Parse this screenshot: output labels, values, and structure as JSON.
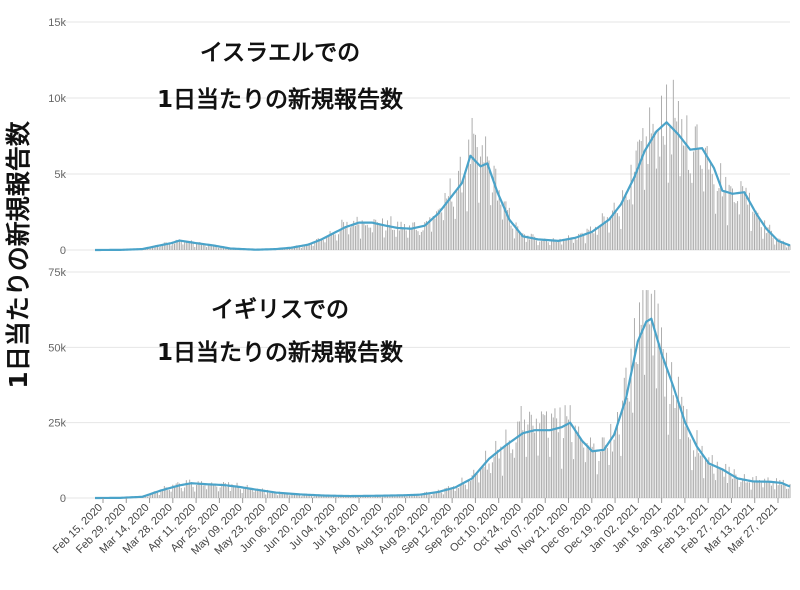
{
  "y_axis_title": "1日当たりの新規報告数",
  "x_dates": [
    "Feb 15, 2020",
    "Feb 29, 2020",
    "Mar 14, 2020",
    "Mar 28, 2020",
    "Apr 11, 2020",
    "Apr 25, 2020",
    "May 09, 2020",
    "May 23, 2020",
    "Jun 06, 2020",
    "Jun 20, 2020",
    "Jul 04, 2020",
    "Jul 18, 2020",
    "Aug 01, 2020",
    "Aug 15, 2020",
    "Aug 29, 2020",
    "Sep 12, 2020",
    "Sep 26, 2020",
    "Oct 10, 2020",
    "Oct 24, 2020",
    "Nov 07, 2020",
    "Nov 21, 2020",
    "Dec 05, 2020",
    "Dec 19, 2020",
    "Jan 02, 2021",
    "Jan 16, 2021",
    "Jan 30, 2021",
    "Feb 13, 2021",
    "Feb 27, 2021",
    "Mar 13, 2021",
    "Mar 27, 2021"
  ],
  "colors": {
    "bars": "#a8a8a8",
    "line": "#4aa3c9",
    "grid": "#e6e6e6"
  },
  "chart_data": [
    {
      "type": "bar",
      "title_lines": [
        "イスラエルでの",
        "1日当たりの新規報告数"
      ],
      "series": [
        {
          "kind": "bar",
          "note": "daily"
        },
        {
          "kind": "line",
          "note": "7-day average"
        }
      ],
      "yticks": [
        0,
        5000,
        10000,
        15000
      ],
      "ytick_labels": [
        "0",
        "5k",
        "10k",
        "15k"
      ],
      "ylim": [
        0,
        15000
      ],
      "xlim": [
        "2020-02-15",
        "2021-04-01"
      ],
      "avg_points": [
        [
          "2020-02-15",
          0
        ],
        [
          "2020-03-01",
          10
        ],
        [
          "2020-03-14",
          60
        ],
        [
          "2020-03-22",
          250
        ],
        [
          "2020-03-31",
          450
        ],
        [
          "2020-04-05",
          620
        ],
        [
          "2020-04-15",
          450
        ],
        [
          "2020-04-25",
          300
        ],
        [
          "2020-05-05",
          100
        ],
        [
          "2020-05-20",
          20
        ],
        [
          "2020-06-01",
          60
        ],
        [
          "2020-06-10",
          150
        ],
        [
          "2020-06-20",
          350
        ],
        [
          "2020-06-28",
          700
        ],
        [
          "2020-07-05",
          1100
        ],
        [
          "2020-07-12",
          1500
        ],
        [
          "2020-07-20",
          1800
        ],
        [
          "2020-07-28",
          1800
        ],
        [
          "2020-08-05",
          1600
        ],
        [
          "2020-08-12",
          1450
        ],
        [
          "2020-08-20",
          1400
        ],
        [
          "2020-08-28",
          1600
        ],
        [
          "2020-09-05",
          2400
        ],
        [
          "2020-09-12",
          3400
        ],
        [
          "2020-09-19",
          4400
        ],
        [
          "2020-09-24",
          6200
        ],
        [
          "2020-09-30",
          5500
        ],
        [
          "2020-10-04",
          5700
        ],
        [
          "2020-10-10",
          3800
        ],
        [
          "2020-10-17",
          2000
        ],
        [
          "2020-10-25",
          900
        ],
        [
          "2020-11-03",
          700
        ],
        [
          "2020-11-15",
          600
        ],
        [
          "2020-11-25",
          800
        ],
        [
          "2020-12-05",
          1200
        ],
        [
          "2020-12-15",
          2000
        ],
        [
          "2020-12-22",
          3000
        ],
        [
          "2020-12-30",
          4800
        ],
        [
          "2021-01-05",
          6500
        ],
        [
          "2021-01-12",
          7800
        ],
        [
          "2021-01-18",
          8400
        ],
        [
          "2021-01-25",
          7600
        ],
        [
          "2021-02-01",
          6600
        ],
        [
          "2021-02-08",
          6700
        ],
        [
          "2021-02-15",
          5400
        ],
        [
          "2021-02-20",
          3900
        ],
        [
          "2021-02-26",
          3700
        ],
        [
          "2021-03-05",
          3800
        ],
        [
          "2021-03-12",
          2400
        ],
        [
          "2021-03-18",
          1400
        ],
        [
          "2021-03-25",
          600
        ],
        [
          "2021-04-01",
          300
        ]
      ]
    },
    {
      "type": "bar",
      "title_lines": [
        "イギリスでの",
        "1日当たりの新規報告数"
      ],
      "series": [
        {
          "kind": "bar",
          "note": "daily"
        },
        {
          "kind": "line",
          "note": "7-day average"
        }
      ],
      "yticks": [
        0,
        25000,
        50000,
        75000
      ],
      "ytick_labels": [
        "0",
        "25k",
        "50k",
        "75k"
      ],
      "ylim": [
        0,
        75000
      ],
      "xlim": [
        "2020-02-15",
        "2021-04-01"
      ],
      "avg_points": [
        [
          "2020-02-15",
          0
        ],
        [
          "2020-03-01",
          50
        ],
        [
          "2020-03-14",
          400
        ],
        [
          "2020-03-25",
          2500
        ],
        [
          "2020-04-05",
          4200
        ],
        [
          "2020-04-12",
          4900
        ],
        [
          "2020-04-20",
          4600
        ],
        [
          "2020-05-01",
          4300
        ],
        [
          "2020-05-10",
          3700
        ],
        [
          "2020-05-20",
          2800
        ],
        [
          "2020-06-01",
          1800
        ],
        [
          "2020-06-15",
          1200
        ],
        [
          "2020-06-30",
          800
        ],
        [
          "2020-07-15",
          650
        ],
        [
          "2020-08-01",
          750
        ],
        [
          "2020-08-15",
          900
        ],
        [
          "2020-08-25",
          1100
        ],
        [
          "2020-09-05",
          2000
        ],
        [
          "2020-09-15",
          3500
        ],
        [
          "2020-09-25",
          6500
        ],
        [
          "2020-10-05",
          13000
        ],
        [
          "2020-10-15",
          17500
        ],
        [
          "2020-10-25",
          21500
        ],
        [
          "2020-11-01",
          22500
        ],
        [
          "2020-11-10",
          22500
        ],
        [
          "2020-11-17",
          23500
        ],
        [
          "2020-11-22",
          25000
        ],
        [
          "2020-11-29",
          19000
        ],
        [
          "2020-12-05",
          15500
        ],
        [
          "2020-12-12",
          16000
        ],
        [
          "2020-12-18",
          21000
        ],
        [
          "2020-12-25",
          33000
        ],
        [
          "2021-01-01",
          52000
        ],
        [
          "2021-01-06",
          58500
        ],
        [
          "2021-01-09",
          59500
        ],
        [
          "2021-01-15",
          48000
        ],
        [
          "2021-01-22",
          37000
        ],
        [
          "2021-01-29",
          25000
        ],
        [
          "2021-02-05",
          17000
        ],
        [
          "2021-02-12",
          11500
        ],
        [
          "2021-02-20",
          9500
        ],
        [
          "2021-03-01",
          6500
        ],
        [
          "2021-03-10",
          5500
        ],
        [
          "2021-03-20",
          5400
        ],
        [
          "2021-03-27",
          5000
        ],
        [
          "2021-04-01",
          3800
        ]
      ]
    }
  ]
}
